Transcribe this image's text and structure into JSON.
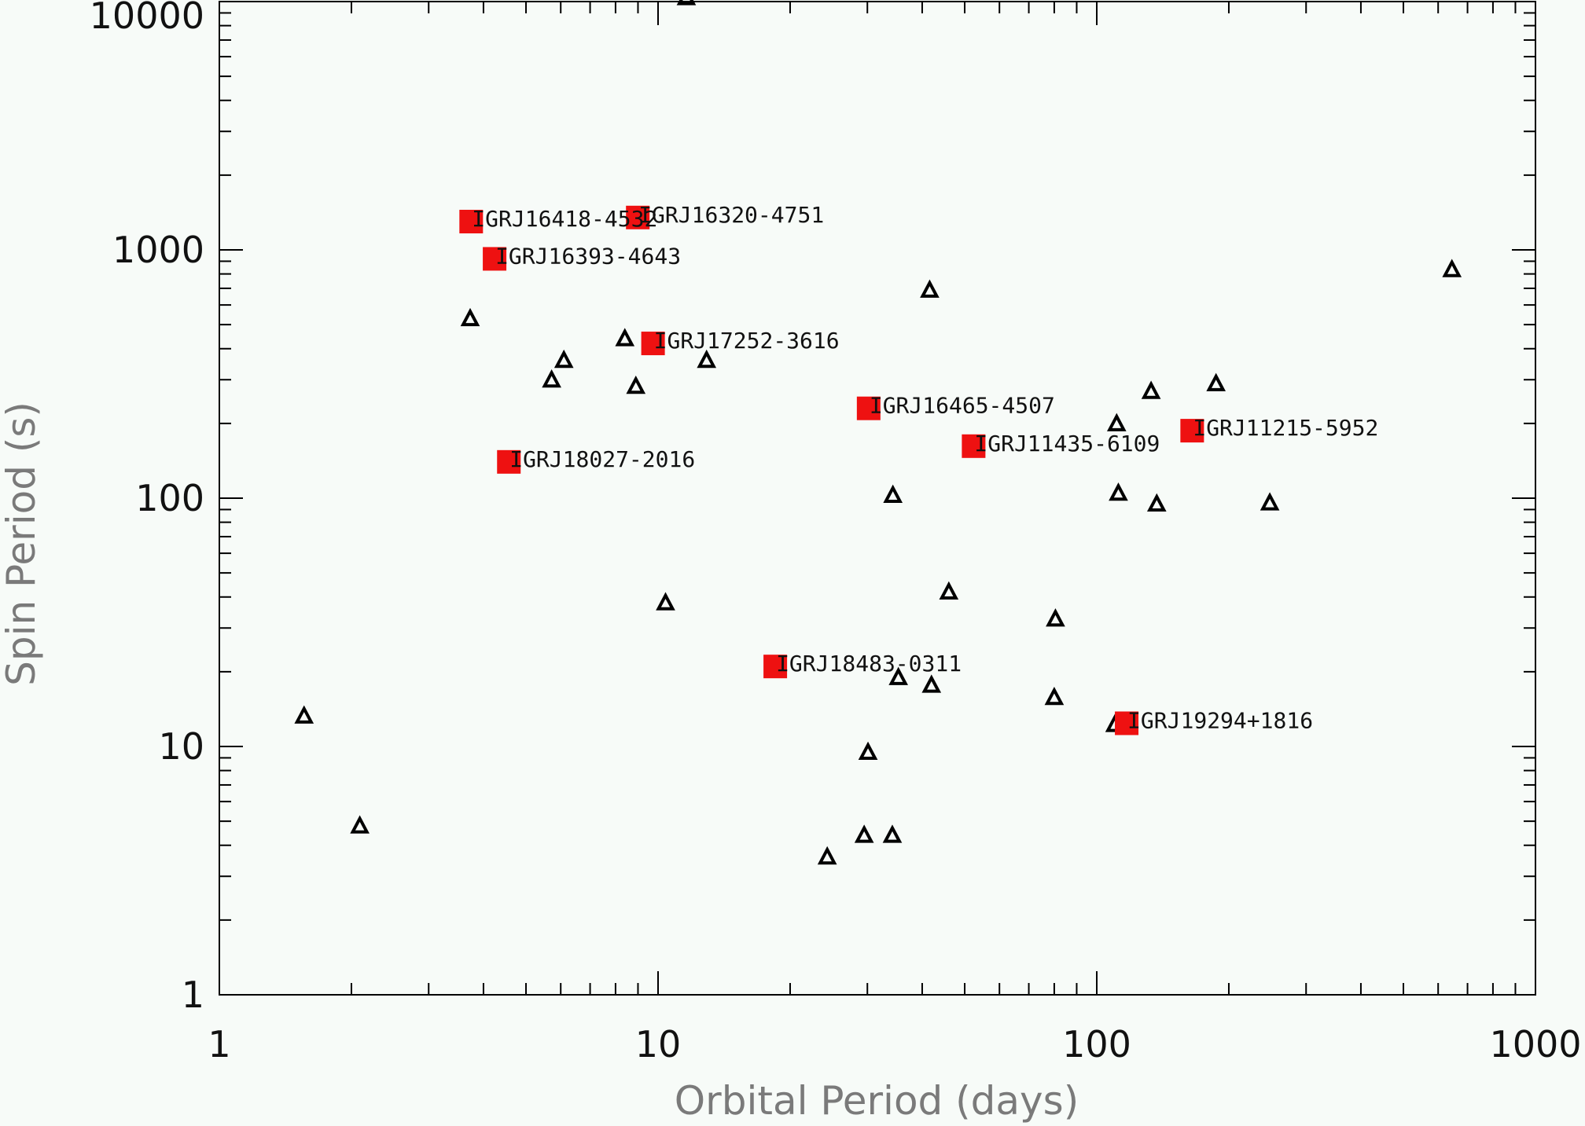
{
  "chart_data": {
    "type": "scatter",
    "title": "",
    "xlabel": "Orbital Period (days)",
    "ylabel": "Spin Period (s)",
    "x_scale": "log",
    "y_scale": "log",
    "xlim": [
      1,
      1000
    ],
    "ylim": [
      1,
      10000
    ],
    "x_ticks": [
      {
        "value": 1,
        "label": "1"
      },
      {
        "value": 10,
        "label": "10"
      },
      {
        "value": 100,
        "label": "100"
      },
      {
        "value": 1000,
        "label": "1000"
      }
    ],
    "y_ticks": [
      {
        "value": 1,
        "label": "1"
      },
      {
        "value": 10,
        "label": "10"
      },
      {
        "value": 100,
        "label": "100"
      },
      {
        "value": 1000,
        "label": "1000"
      },
      {
        "value": 10000,
        "label": "10000"
      }
    ],
    "grid": false,
    "legend": "none",
    "series": [
      {
        "marker": "triangle",
        "color": "#000000",
        "points": [
          {
            "x": 1.56,
            "y": 13.3
          },
          {
            "x": 2.09,
            "y": 4.8
          },
          {
            "x": 3.73,
            "y": 530
          },
          {
            "x": 5.72,
            "y": 300
          },
          {
            "x": 6.1,
            "y": 360
          },
          {
            "x": 8.4,
            "y": 440
          },
          {
            "x": 8.9,
            "y": 283
          },
          {
            "x": 10.4,
            "y": 38
          },
          {
            "x": 11.6,
            "y": 10400
          },
          {
            "x": 12.9,
            "y": 360
          },
          {
            "x": 24.3,
            "y": 3.6
          },
          {
            "x": 29.5,
            "y": 4.4
          },
          {
            "x": 30.1,
            "y": 9.5
          },
          {
            "x": 34.2,
            "y": 4.4
          },
          {
            "x": 34.3,
            "y": 103
          },
          {
            "x": 35.3,
            "y": 19
          },
          {
            "x": 41.6,
            "y": 690
          },
          {
            "x": 42.0,
            "y": 17.7
          },
          {
            "x": 46.0,
            "y": 42
          },
          {
            "x": 80.0,
            "y": 15.8
          },
          {
            "x": 80.5,
            "y": 32.7
          },
          {
            "x": 110.0,
            "y": 12.3
          },
          {
            "x": 111.0,
            "y": 200
          },
          {
            "x": 112.0,
            "y": 105
          },
          {
            "x": 133.0,
            "y": 270
          },
          {
            "x": 137.0,
            "y": 95
          },
          {
            "x": 187.0,
            "y": 290
          },
          {
            "x": 248.0,
            "y": 96
          },
          {
            "x": 645.0,
            "y": 835
          }
        ]
      },
      {
        "marker": "square",
        "color": "#ee1111",
        "points": [
          {
            "x": 3.75,
            "y": 1300,
            "label": "IGRJ16418-4532"
          },
          {
            "x": 8.99,
            "y": 1350,
            "label": "IGRJ16320-4751"
          },
          {
            "x": 4.24,
            "y": 920,
            "label": "IGRJ16393-4643"
          },
          {
            "x": 9.74,
            "y": 420,
            "label": "IGRJ17252-3616"
          },
          {
            "x": 30.2,
            "y": 230,
            "label": "IGRJ16465-4507"
          },
          {
            "x": 4.57,
            "y": 140,
            "label": "IGRJ18027-2016"
          },
          {
            "x": 52.4,
            "y": 162,
            "label": "IGRJ11435-6109"
          },
          {
            "x": 165.0,
            "y": 187,
            "label": "IGRJ11215-5952"
          },
          {
            "x": 18.5,
            "y": 21,
            "label": "IGRJ18483-0311"
          },
          {
            "x": 117.0,
            "y": 12.4,
            "label": "IGRJ19294+1816"
          }
        ]
      }
    ]
  }
}
